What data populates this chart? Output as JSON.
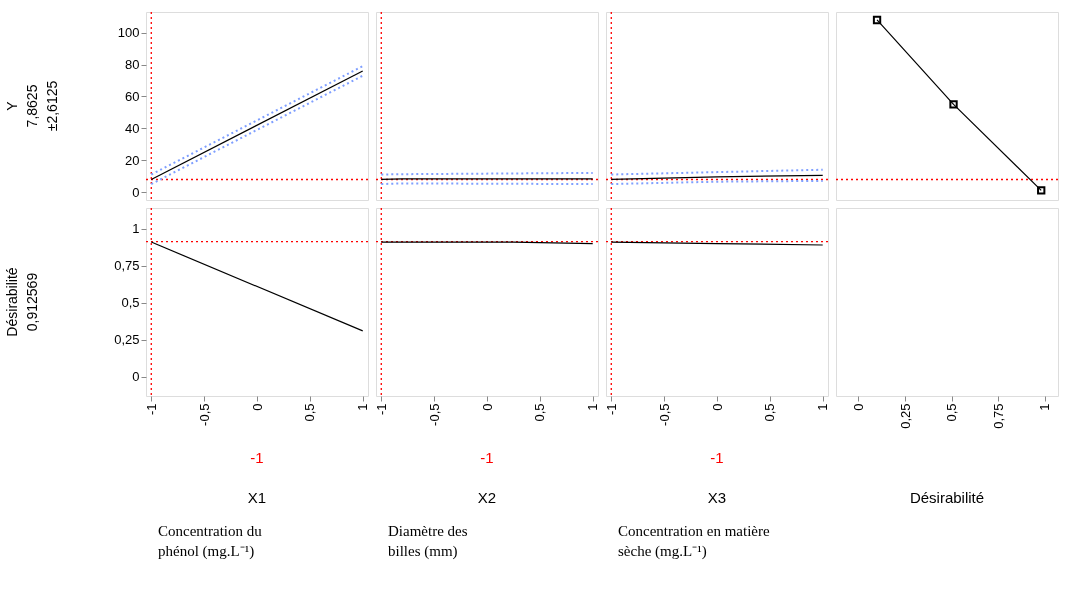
{
  "chart_data": [
    {
      "type": "line",
      "ylabel": "Y\n7,8625\n±2,6125",
      "tick_labels": "y",
      "xlim": [
        -1.05,
        1.05
      ],
      "xticks": [
        -1,
        -0.5,
        0,
        0.5,
        1
      ],
      "ylim": [
        -5,
        113
      ],
      "yticks": [
        0,
        20,
        40,
        60,
        80,
        100
      ],
      "series": [
        {
          "color": "#000000",
          "line_style": "solid",
          "x": [
            -1,
            1
          ],
          "values": [
            7.9,
            76
          ]
        },
        {
          "color": "#7f9fff",
          "line_style": "dotted",
          "x": [
            -1,
            1
          ],
          "values": [
            5,
            73
          ]
        },
        {
          "color": "#7f9fff",
          "line_style": "dotted",
          "x": [
            -1,
            1
          ],
          "values": [
            11,
            79
          ]
        }
      ],
      "ref_lines": [
        {
          "axis": "x",
          "value": -1,
          "color": "#ff0000",
          "line_style": "dotted"
        },
        {
          "axis": "y",
          "value": 7.8625,
          "color": "#ff0000",
          "line_style": "dotted"
        }
      ]
    },
    {
      "type": "line",
      "tick_labels": false,
      "xlim": [
        -1.05,
        1.05
      ],
      "xticks": [
        -1,
        -0.5,
        0,
        0.5,
        1
      ],
      "ylim": [
        -5,
        113
      ],
      "yticks": [
        0,
        20,
        40,
        60,
        80,
        100
      ],
      "series": [
        {
          "color": "#000000",
          "line_style": "solid",
          "x": [
            -1,
            -0.8,
            1
          ],
          "values": [
            7.9,
            8.3,
            8.3
          ]
        },
        {
          "color": "#7f9fff",
          "line_style": "dotted",
          "x": [
            -1,
            -0.8,
            1
          ],
          "values": [
            5,
            5.4,
            5
          ]
        },
        {
          "color": "#7f9fff",
          "line_style": "dotted",
          "x": [
            -1,
            -0.8,
            1
          ],
          "values": [
            11,
            11.2,
            12
          ]
        }
      ],
      "ref_lines": [
        {
          "axis": "x",
          "value": -1,
          "color": "#ff0000",
          "line_style": "dotted"
        },
        {
          "axis": "y",
          "value": 7.8625,
          "color": "#ff0000",
          "line_style": "dotted"
        }
      ]
    },
    {
      "type": "line",
      "tick_labels": false,
      "xlim": [
        -1.05,
        1.05
      ],
      "xticks": [
        -1,
        -0.5,
        0,
        0.5,
        1
      ],
      "ylim": [
        -5,
        113
      ],
      "yticks": [
        0,
        20,
        40,
        60,
        80,
        100
      ],
      "series": [
        {
          "color": "#000000",
          "line_style": "solid",
          "x": [
            -1,
            0,
            1
          ],
          "values": [
            7.9,
            9.5,
            10.5
          ]
        },
        {
          "color": "#7f9fff",
          "line_style": "dotted",
          "x": [
            -1,
            0,
            1
          ],
          "values": [
            5,
            6.5,
            7
          ]
        },
        {
          "color": "#7f9fff",
          "line_style": "dotted",
          "x": [
            -1,
            0,
            1
          ],
          "values": [
            11,
            12.5,
            14
          ]
        }
      ],
      "ref_lines": [
        {
          "axis": "x",
          "value": -1,
          "color": "#ff0000",
          "line_style": "dotted"
        },
        {
          "axis": "y",
          "value": 7.8625,
          "color": "#ff0000",
          "line_style": "dotted"
        }
      ]
    },
    {
      "type": "line",
      "tick_labels": false,
      "marker": "square",
      "xlim": [
        -0.12,
        1.07
      ],
      "xticks": [
        0,
        0.25,
        0.5,
        0.75,
        1
      ],
      "ylim": [
        -5,
        113
      ],
      "yticks": [
        0,
        20,
        40,
        60,
        80,
        100
      ],
      "series": [
        {
          "color": "#000000",
          "line_style": "solid",
          "x": [
            0.1,
            0.51,
            0.98
          ],
          "values": [
            108,
            55,
            1
          ]
        }
      ],
      "ref_lines": [
        {
          "axis": "y",
          "value": 7.8625,
          "color": "#ff0000",
          "line_style": "dotted"
        }
      ]
    },
    {
      "type": "line",
      "ylabel": "Désirabilité\n0,912569",
      "xlabel": "X1",
      "annotations": [
        "Concentration du\nphénol (mg.L⁻¹)"
      ],
      "xlim": [
        -1.05,
        1.05
      ],
      "xticks": [
        -1,
        {
          "value": -0.5,
          "label": "-0,5"
        },
        0,
        {
          "value": 0.5,
          "label": "0,5"
        },
        1
      ],
      "ylim": [
        -0.13,
        1.14
      ],
      "yticks": [
        0,
        {
          "value": 0.25,
          "label": "0,25"
        },
        {
          "value": 0.5,
          "label": "0,5"
        },
        {
          "value": 0.75,
          "label": "0,75"
        },
        1
      ],
      "series": [
        {
          "color": "#000000",
          "line_style": "solid",
          "x": [
            -1,
            1
          ],
          "values": [
            0.91,
            0.31
          ]
        }
      ],
      "ref_lines": [
        {
          "axis": "x",
          "value": -1,
          "label": "-1",
          "color": "#ff0000",
          "line_style": "dotted"
        },
        {
          "axis": "y",
          "value": 0.912569,
          "color": "#ff0000",
          "line_style": "dotted"
        }
      ]
    },
    {
      "type": "line",
      "tick_labels": "x",
      "xlabel": "X2",
      "annotations": [
        "Diamètre des\nbilles (mm)"
      ],
      "xlim": [
        -1.05,
        1.05
      ],
      "xticks": [
        -1,
        {
          "value": -0.5,
          "label": "-0,5"
        },
        0,
        {
          "value": 0.5,
          "label": "0,5"
        },
        1
      ],
      "ylim": [
        -0.13,
        1.14
      ],
      "yticks": [
        0,
        0.25,
        0.5,
        0.75,
        1
      ],
      "series": [
        {
          "color": "#000000",
          "line_style": "solid",
          "x": [
            -1,
            0.25,
            1
          ],
          "values": [
            0.91,
            0.91,
            0.9
          ]
        }
      ],
      "ref_lines": [
        {
          "axis": "x",
          "value": -1,
          "label": "-1",
          "color": "#ff0000",
          "line_style": "dotted"
        },
        {
          "axis": "y",
          "value": 0.912569,
          "color": "#ff0000",
          "line_style": "dotted"
        }
      ]
    },
    {
      "type": "line",
      "tick_labels": "x",
      "xlabel": "X3",
      "annotations": [
        "Concentration en matière\nsèche (mg.L⁻¹)"
      ],
      "xlim": [
        -1.05,
        1.05
      ],
      "xticks": [
        -1,
        {
          "value": -0.5,
          "label": "-0,5"
        },
        0,
        {
          "value": 0.5,
          "label": "0,5"
        },
        1
      ],
      "ylim": [
        -0.13,
        1.14
      ],
      "yticks": [
        0,
        0.25,
        0.5,
        0.75,
        1
      ],
      "series": [
        {
          "color": "#000000",
          "line_style": "solid",
          "x": [
            -1,
            0,
            1
          ],
          "values": [
            0.91,
            0.9,
            0.89
          ]
        }
      ],
      "ref_lines": [
        {
          "axis": "x",
          "value": -1,
          "label": "-1",
          "color": "#ff0000",
          "line_style": "dotted"
        },
        {
          "axis": "y",
          "value": 0.912569,
          "color": "#ff0000",
          "line_style": "dotted"
        }
      ]
    },
    {
      "type": "line",
      "tick_labels": "x",
      "xlabel": "Désirabilité",
      "xlim": [
        -0.12,
        1.07
      ],
      "xticks": [
        0,
        {
          "value": 0.25,
          "label": "0,25"
        },
        {
          "value": 0.5,
          "label": "0,5"
        },
        {
          "value": 0.75,
          "label": "0,75"
        },
        1
      ],
      "ylim": [
        -0.13,
        1.14
      ],
      "yticks": [
        0,
        0.25,
        0.5,
        0.75,
        1
      ]
    }
  ]
}
